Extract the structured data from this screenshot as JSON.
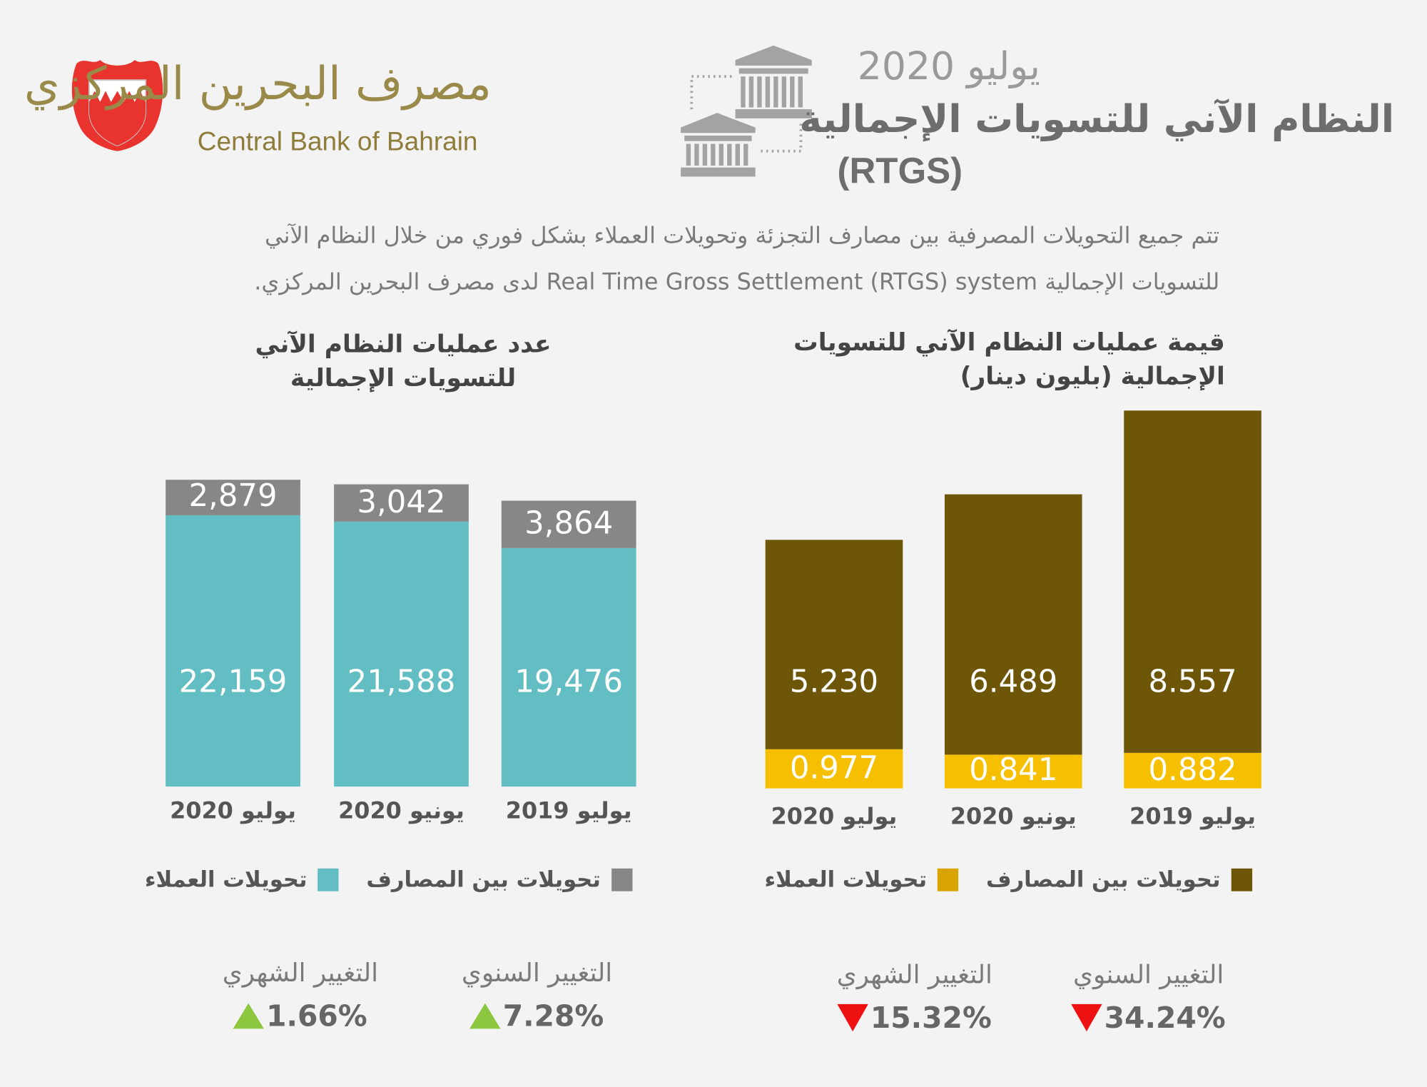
{
  "header": {
    "logo_arabic": "مصرف البحرين المركزي",
    "logo_english": "Central Bank of Bahrain",
    "date": "يوليو 2020",
    "title": "النظام الآني للتسويات الإجمالية",
    "title_abbr": "(RTGS)",
    "description_line1": "تتم جميع التحويلات المصرفية بين مصارف التجزئة وتحويلات العملاء بشكل فوري من خلال النظام الآني",
    "description_line2": "للتسويات الإجمالية Real Time Gross Settlement (RTGS) system لدى مصرف البحرين المركزي."
  },
  "colors": {
    "teal": "#63bec3",
    "gray": "#878787",
    "brown": "#6e5608",
    "yellow": "#f6bf00",
    "yellow_legend": "#d9a400",
    "up": "#8dc63f",
    "down": "#ee1111"
  },
  "chart_data": [
    {
      "type": "bar",
      "stacked": true,
      "title_line1": "عدد عمليات النظام الآني",
      "title_line2": "للتسويات الإجمالية",
      "categories": [
        "يوليو 2020",
        "يونيو 2020",
        "يوليو 2019"
      ],
      "series": [
        {
          "name": "تحويلات العملاء",
          "values": [
            22159,
            21588,
            19476
          ],
          "labels": [
            "22,159",
            "21,588",
            "19,476"
          ],
          "color": "#63bec3",
          "legend_color": "#63bec3"
        },
        {
          "name": "تحويلات بين المصارف",
          "values": [
            2879,
            3042,
            3864
          ],
          "labels": [
            "2,879",
            "3,042",
            "3,864"
          ],
          "color": "#878787",
          "legend_color": "#878787"
        }
      ],
      "legend_order": [
        1,
        0
      ],
      "stats": [
        {
          "label": "التغيير الشهري",
          "value": "1.66%",
          "direction": "up"
        },
        {
          "label": "التغيير السنوي",
          "value": "7.28%",
          "direction": "up"
        }
      ]
    },
    {
      "type": "bar",
      "stacked": true,
      "title_line1": "قيمة عمليات النظام الآني للتسويات",
      "title_line2": "الإجمالية (بليون دينار)",
      "categories": [
        "يوليو 2020",
        "يونيو 2020",
        "يوليو 2019"
      ],
      "series": [
        {
          "name": "تحويلات العملاء",
          "values": [
            0.977,
            0.841,
            0.882
          ],
          "labels": [
            "0.977",
            "0.841",
            "0.882"
          ],
          "color": "#f6bf00",
          "legend_color": "#d9a400"
        },
        {
          "name": "تحويلات بين المصارف",
          "values": [
            5.23,
            6.489,
            8.557
          ],
          "labels": [
            "5.230",
            "6.489",
            "8.557"
          ],
          "color": "#6e5608",
          "legend_color": "#6e5608"
        }
      ],
      "legend_order": [
        1,
        0
      ],
      "stats": [
        {
          "label": "التغيير الشهري",
          "value": "15.32%",
          "direction": "down"
        },
        {
          "label": "التغيير السنوي",
          "value": "34.24%",
          "direction": "down"
        }
      ]
    }
  ]
}
